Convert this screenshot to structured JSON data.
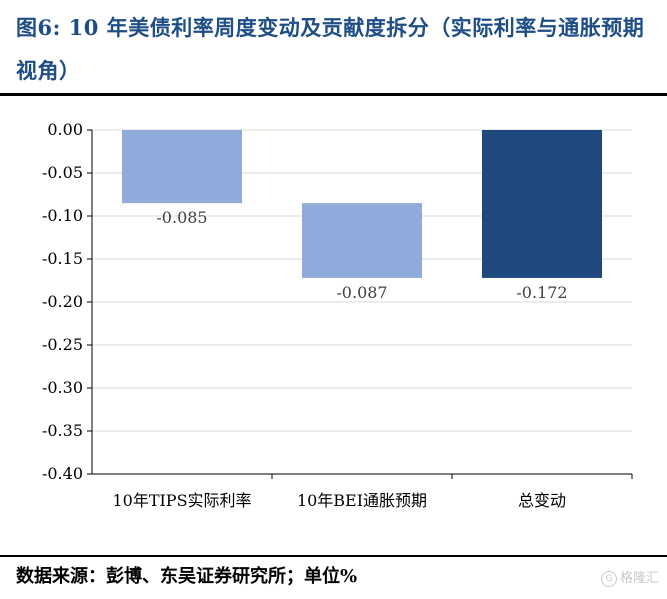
{
  "title": "图6:  10 年美债利率周度变动及贡献度拆分（实际利率与通胀预期视角）",
  "source": "数据来源：彭博、东吴证券研究所；单位%",
  "watermark": "格隆汇",
  "colors": {
    "light_bar": "#8eabdb",
    "dark_bar": "#1f497d",
    "title": "#1f4e86"
  },
  "chart_data": {
    "type": "bar",
    "subtype": "waterfall",
    "categories": [
      "10年TIPS实际利率",
      "10年BEI通胀预期",
      "总变动"
    ],
    "values": [
      -0.085,
      -0.087,
      -0.172
    ],
    "data_labels": [
      "-0.085",
      "-0.087",
      "-0.172"
    ],
    "bases": [
      0,
      -0.085,
      0
    ],
    "ylim": [
      -0.4,
      0.0
    ],
    "yticks": [
      "0.00",
      "-0.05",
      "-0.10",
      "-0.15",
      "-0.20",
      "-0.25",
      "-0.30",
      "-0.35",
      "-0.40"
    ],
    "grid": true,
    "legend": "none",
    "xlabel": "",
    "ylabel": ""
  }
}
